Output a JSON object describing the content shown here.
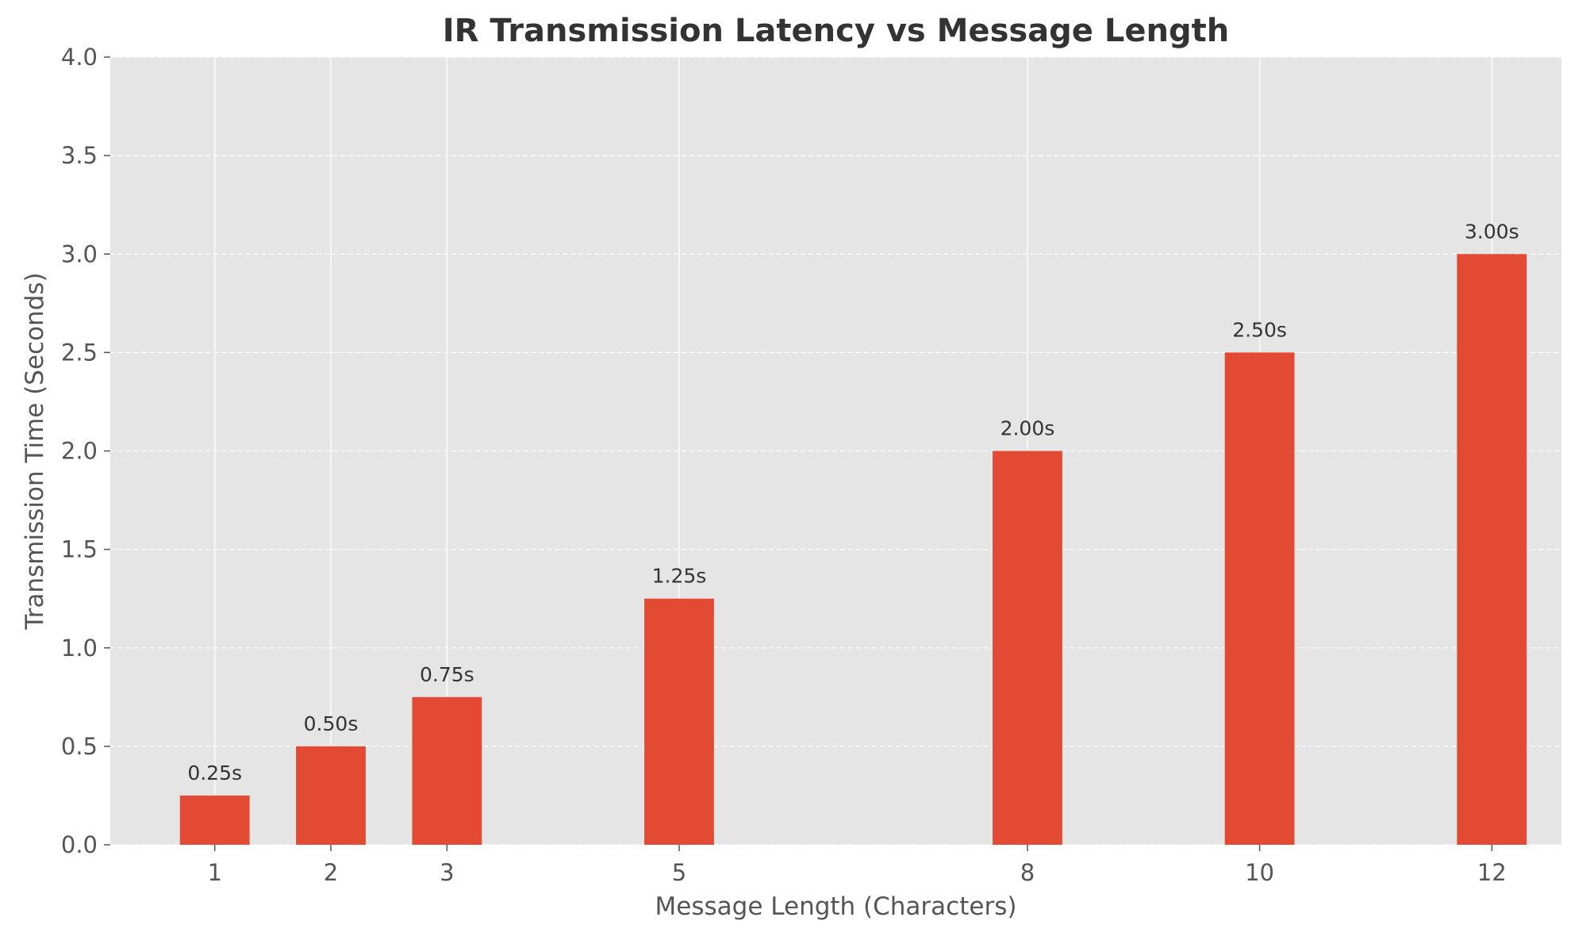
{
  "chart_data": {
    "type": "bar",
    "title": "IR Transmission Latency vs Message Length",
    "xlabel": "Message Length (Characters)",
    "ylabel": "Transmission Time (Seconds)",
    "x": [
      1,
      2,
      3,
      5,
      8,
      10,
      12
    ],
    "x_tick_labels": [
      "1",
      "2",
      "3",
      "5",
      "8",
      "10",
      "12"
    ],
    "values": [
      0.25,
      0.5,
      0.75,
      1.25,
      2.0,
      2.5,
      3.0
    ],
    "data_labels": [
      "0.25s",
      "0.50s",
      "0.75s",
      "1.25s",
      "2.00s",
      "2.50s",
      "3.00s"
    ],
    "xlim": [
      0.1,
      12.6
    ],
    "ylim": [
      0,
      4.0
    ],
    "y_ticks": [
      0.0,
      0.5,
      1.0,
      1.5,
      2.0,
      2.5,
      3.0,
      3.5,
      4.0
    ],
    "y_tick_labels": [
      "0.0",
      "0.5",
      "1.0",
      "1.5",
      "2.0",
      "2.5",
      "3.0",
      "3.5",
      "4.0"
    ],
    "grid": true,
    "colors": {
      "bar": "#E24A33",
      "plot_background": "#E5E5E5",
      "grid": "#FFFFFF"
    }
  }
}
